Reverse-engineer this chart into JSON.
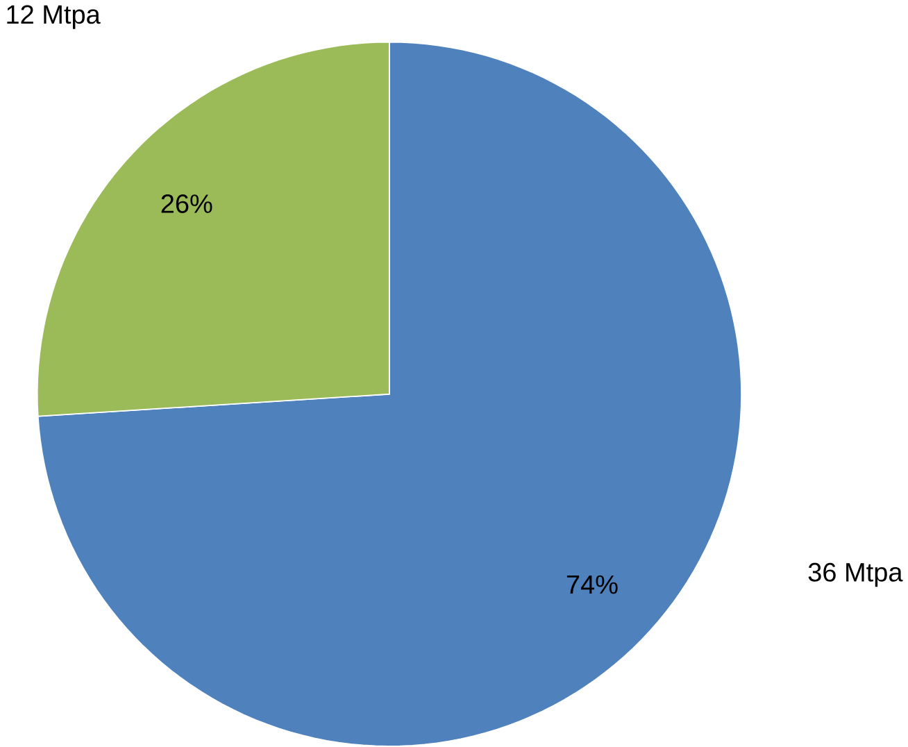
{
  "chart_data": {
    "type": "pie",
    "categories": [
      "36 Mtpa",
      "12 Mtpa"
    ],
    "values": [
      74,
      26
    ],
    "value_labels": [
      "74%",
      "26%"
    ],
    "colors": [
      "#4f81bd",
      "#9bbb59"
    ]
  }
}
